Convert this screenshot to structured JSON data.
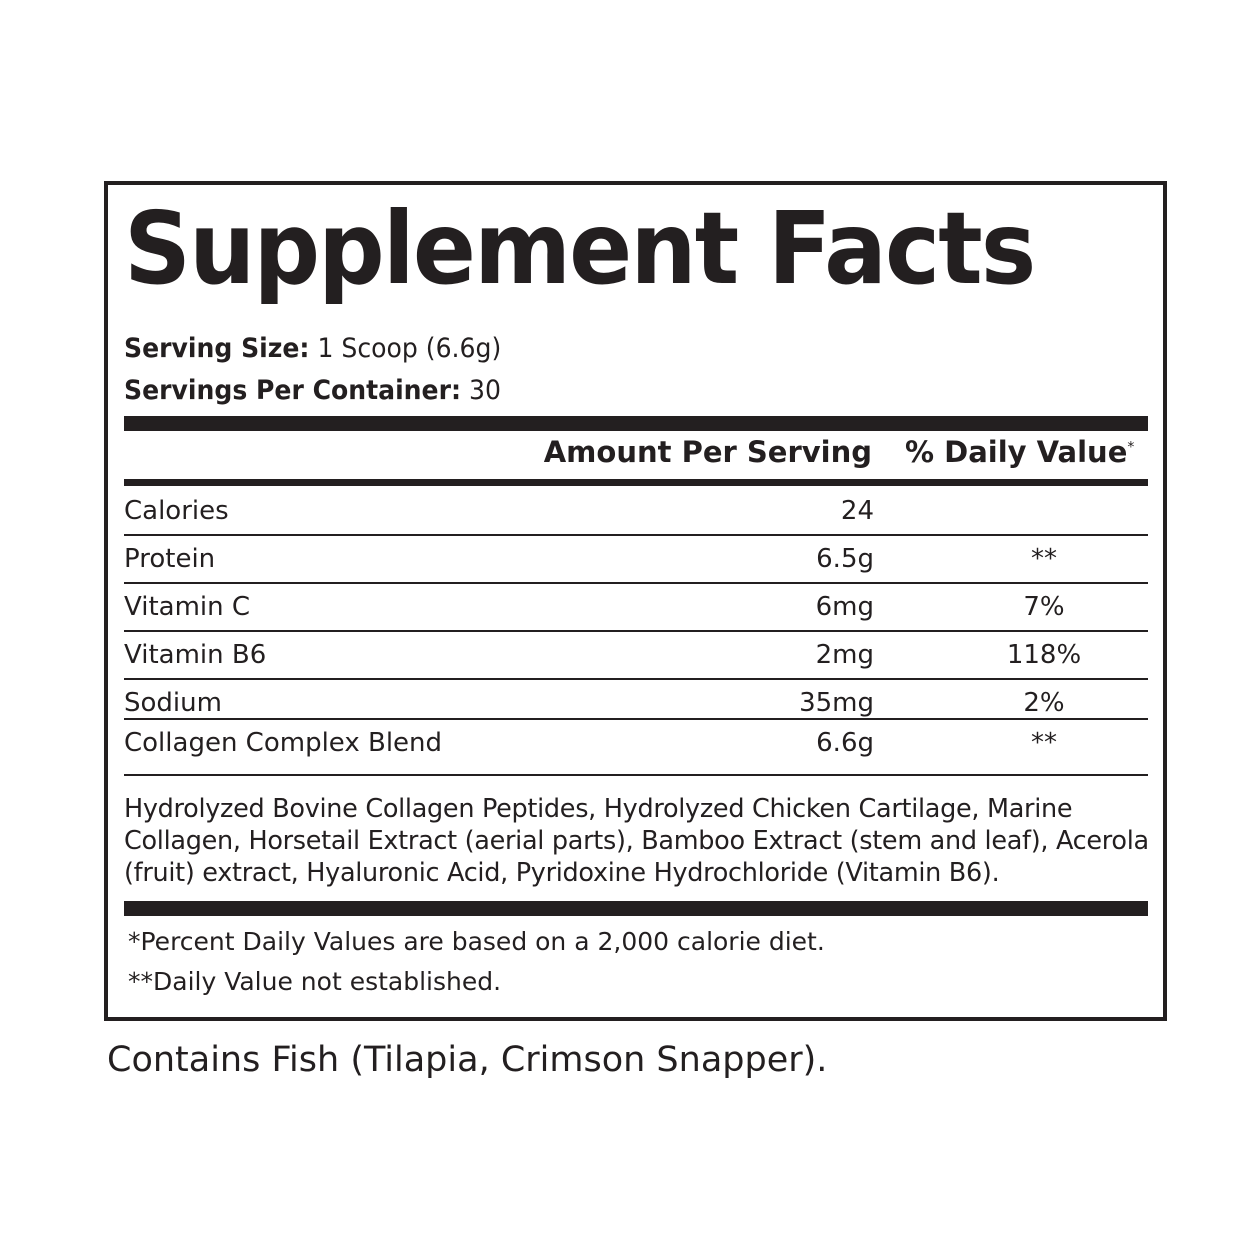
{
  "title": "Supplement Facts",
  "serving_size": {
    "label": "Serving Size:",
    "value": "1 Scoop (6.6g)"
  },
  "servings_per_container": {
    "label": "Servings Per Container:",
    "value": "30"
  },
  "headers": {
    "amount": "Amount Per Serving",
    "daily_value": "% Daily Value",
    "daily_value_mark": "*"
  },
  "rows": [
    {
      "name": "Calories",
      "amount": "24",
      "dv": ""
    },
    {
      "name": "Protein",
      "amount": "6.5g",
      "dv": "**"
    },
    {
      "name": "Vitamin C",
      "amount": "6mg",
      "dv": "7%"
    },
    {
      "name": "Vitamin B6",
      "amount": "2mg",
      "dv": "118%"
    },
    {
      "name": "Sodium",
      "amount": "35mg",
      "dv": "2%"
    },
    {
      "name": "Collagen Complex Blend",
      "amount": "6.6g",
      "dv": "**"
    }
  ],
  "ingredients": "Hydrolyzed Bovine Collagen Peptides, Hydrolyzed Chicken Cartilage, Marine Collagen, Horsetail Extract (aerial parts), Bamboo Extract (stem and leaf), Acerola (fruit) extract, Hyaluronic Acid, Pyridoxine Hydrochloride (Vitamin B6).",
  "footnotes": [
    "*Percent Daily Values are based on a 2,000 calorie diet.",
    "**Daily Value not established."
  ],
  "allergen": "Contains Fish (Tilapia, Crimson Snapper)."
}
